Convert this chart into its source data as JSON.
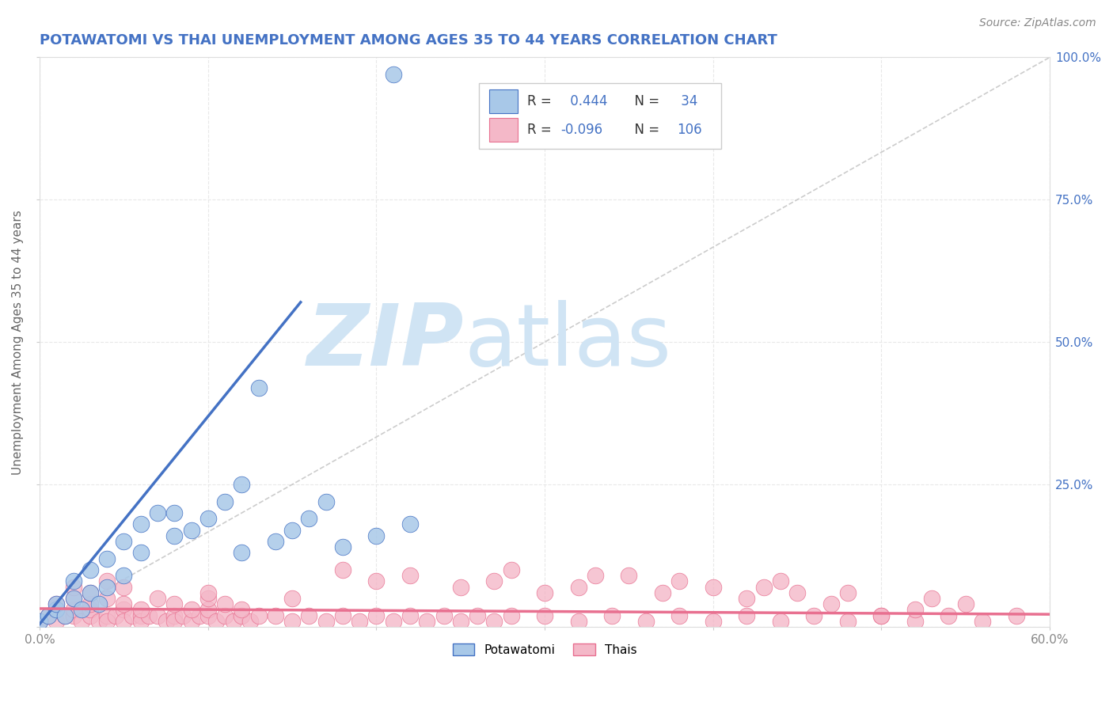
{
  "title": "POTAWATOMI VS THAI UNEMPLOYMENT AMONG AGES 35 TO 44 YEARS CORRELATION CHART",
  "source_text": "Source: ZipAtlas.com",
  "ylabel": "Unemployment Among Ages 35 to 44 years",
  "xlim": [
    0.0,
    0.6
  ],
  "ylim": [
    0.0,
    1.0
  ],
  "blue_color": "#A8C8E8",
  "pink_color": "#F4B8C8",
  "blue_line_color": "#4472C4",
  "pink_line_color": "#E87090",
  "ref_line_color": "#C0C0C0",
  "watermark_zip": "ZIP",
  "watermark_atlas": "atlas",
  "watermark_color": "#D0E4F4",
  "title_color": "#4472C4",
  "axis_label_color": "#4472C4",
  "tick_color": "#888888",
  "grid_color": "#E8E8E8",
  "pota_x": [
    0.0,
    0.005,
    0.01,
    0.01,
    0.015,
    0.02,
    0.02,
    0.025,
    0.03,
    0.03,
    0.035,
    0.04,
    0.04,
    0.05,
    0.05,
    0.06,
    0.06,
    0.07,
    0.08,
    0.09,
    0.1,
    0.11,
    0.12,
    0.13,
    0.14,
    0.15,
    0.16,
    0.17,
    0.18,
    0.2,
    0.22,
    0.12,
    0.08,
    0.21
  ],
  "pota_y": [
    0.01,
    0.02,
    0.03,
    0.04,
    0.02,
    0.05,
    0.08,
    0.03,
    0.06,
    0.1,
    0.04,
    0.12,
    0.07,
    0.15,
    0.09,
    0.18,
    0.13,
    0.2,
    0.16,
    0.17,
    0.19,
    0.22,
    0.25,
    0.42,
    0.15,
    0.17,
    0.19,
    0.22,
    0.14,
    0.16,
    0.18,
    0.13,
    0.2,
    0.97
  ],
  "thai_x": [
    0.0,
    0.005,
    0.01,
    0.01,
    0.015,
    0.02,
    0.02,
    0.025,
    0.03,
    0.03,
    0.035,
    0.04,
    0.04,
    0.045,
    0.05,
    0.05,
    0.055,
    0.06,
    0.06,
    0.065,
    0.07,
    0.075,
    0.08,
    0.08,
    0.085,
    0.09,
    0.095,
    0.1,
    0.1,
    0.105,
    0.11,
    0.115,
    0.12,
    0.125,
    0.13,
    0.14,
    0.15,
    0.16,
    0.17,
    0.18,
    0.19,
    0.2,
    0.21,
    0.22,
    0.23,
    0.24,
    0.25,
    0.26,
    0.27,
    0.28,
    0.3,
    0.32,
    0.34,
    0.36,
    0.38,
    0.4,
    0.42,
    0.44,
    0.46,
    0.48,
    0.5,
    0.52,
    0.54,
    0.56,
    0.58,
    0.01,
    0.02,
    0.03,
    0.04,
    0.05,
    0.06,
    0.07,
    0.08,
    0.09,
    0.1,
    0.11,
    0.12,
    0.02,
    0.03,
    0.04,
    0.05,
    0.15,
    0.2,
    0.25,
    0.3,
    0.35,
    0.4,
    0.45,
    0.28,
    0.33,
    0.38,
    0.43,
    0.48,
    0.53,
    0.18,
    0.22,
    0.27,
    0.32,
    0.37,
    0.42,
    0.47,
    0.52,
    0.44,
    0.55,
    0.1,
    0.5
  ],
  "thai_y": [
    0.01,
    0.02,
    0.03,
    0.01,
    0.02,
    0.02,
    0.03,
    0.01,
    0.02,
    0.03,
    0.01,
    0.02,
    0.01,
    0.02,
    0.03,
    0.01,
    0.02,
    0.02,
    0.01,
    0.02,
    0.02,
    0.01,
    0.02,
    0.01,
    0.02,
    0.01,
    0.02,
    0.02,
    0.03,
    0.01,
    0.02,
    0.01,
    0.02,
    0.01,
    0.02,
    0.02,
    0.01,
    0.02,
    0.01,
    0.02,
    0.01,
    0.02,
    0.01,
    0.02,
    0.01,
    0.02,
    0.01,
    0.02,
    0.01,
    0.02,
    0.02,
    0.01,
    0.02,
    0.01,
    0.02,
    0.01,
    0.02,
    0.01,
    0.02,
    0.01,
    0.02,
    0.01,
    0.02,
    0.01,
    0.02,
    0.04,
    0.05,
    0.04,
    0.05,
    0.04,
    0.03,
    0.05,
    0.04,
    0.03,
    0.05,
    0.04,
    0.03,
    0.07,
    0.06,
    0.08,
    0.07,
    0.05,
    0.08,
    0.07,
    0.06,
    0.09,
    0.07,
    0.06,
    0.1,
    0.09,
    0.08,
    0.07,
    0.06,
    0.05,
    0.1,
    0.09,
    0.08,
    0.07,
    0.06,
    0.05,
    0.04,
    0.03,
    0.08,
    0.04,
    0.06,
    0.02
  ],
  "blue_trend_x0": 0.0,
  "blue_trend_x1": 0.155,
  "blue_trend_y0": 0.005,
  "blue_trend_y1": 0.57,
  "pink_trend_x0": 0.0,
  "pink_trend_x1": 0.6,
  "pink_trend_y0": 0.032,
  "pink_trend_y1": 0.022,
  "legend_r1_val": "0.444",
  "legend_n1_val": "34",
  "legend_r2_val": "-0.096",
  "legend_n2_val": "106"
}
